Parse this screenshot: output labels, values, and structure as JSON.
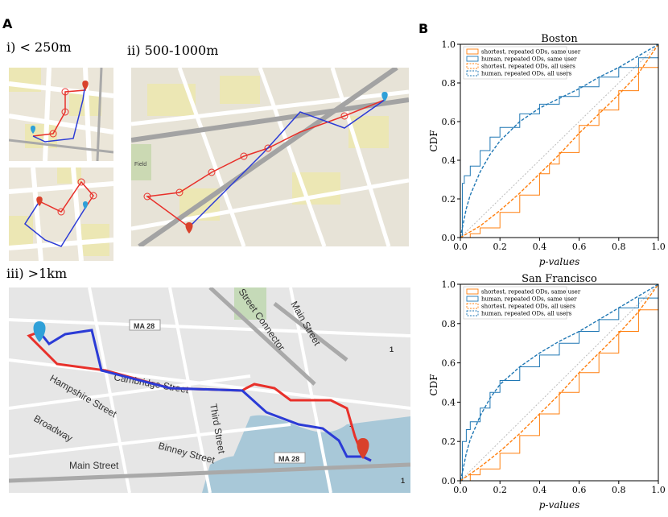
{
  "panel_a_label": "A",
  "panel_b_label": "B",
  "map_labels": {
    "i": "i) < 250m",
    "ii": "ii) 500-1000m",
    "iii": "iii) >1km"
  },
  "map_iii_text": {
    "street_cambridge": "Cambridge Street",
    "street_hampshire": "Hampshire Street",
    "street_broadway": "Broadway",
    "street_binney": "Binney Street",
    "street_main_lower": "Main Street",
    "street_main_upper": "Main Street",
    "street_third": "Third Street",
    "street_connector": "Street Connector",
    "route_ma28_top": "MA 28",
    "route_ma28_bottom": "MA 28",
    "route_1a": "1",
    "route_1b": "1",
    "route_1c": "1"
  },
  "map_ii_text": {
    "field": "Field"
  },
  "colors": {
    "shortest": "#ff7f0e",
    "human": "#1f77b4",
    "route_red": "#e8302a",
    "route_blue": "#2b3bd6",
    "pin_red": "#d9412b",
    "pin_blue": "#2fa0d8"
  },
  "chart_data": [
    {
      "type": "line",
      "title": "Boston",
      "xlabel": "p-values",
      "ylabel": "CDF",
      "xlim": [
        0,
        1
      ],
      "ylim": [
        0,
        1
      ],
      "xticks": [
        "0.0",
        "0.2",
        "0.4",
        "0.6",
        "0.8",
        "1.0"
      ],
      "yticks": [
        "0.0",
        "0.2",
        "0.4",
        "0.6",
        "0.8",
        "1.0"
      ],
      "legend_position": "top-left",
      "series": [
        {
          "name": "shortest, repeated ODs, same user",
          "style": "step",
          "x": [
            0,
            0.05,
            0.1,
            0.2,
            0.3,
            0.4,
            0.45,
            0.5,
            0.6,
            0.7,
            0.8,
            0.9,
            1.0
          ],
          "y": [
            0,
            0.02,
            0.05,
            0.13,
            0.22,
            0.33,
            0.38,
            0.44,
            0.58,
            0.66,
            0.76,
            0.88,
            1.0
          ]
        },
        {
          "name": "human, repeated ODs, same user",
          "style": "step",
          "x": [
            0,
            0.01,
            0.02,
            0.05,
            0.1,
            0.15,
            0.2,
            0.3,
            0.4,
            0.5,
            0.6,
            0.7,
            0.8,
            0.9,
            1.0
          ],
          "y": [
            0,
            0.28,
            0.32,
            0.37,
            0.45,
            0.52,
            0.57,
            0.64,
            0.69,
            0.73,
            0.78,
            0.83,
            0.88,
            0.93,
            1.0
          ]
        },
        {
          "name": "shortest, repeated ODs, all users",
          "style": "dashed",
          "x": [
            0,
            0.1,
            0.2,
            0.3,
            0.4,
            0.5,
            0.6,
            0.7,
            0.8,
            0.9,
            1.0
          ],
          "y": [
            0,
            0.06,
            0.14,
            0.23,
            0.33,
            0.43,
            0.54,
            0.64,
            0.74,
            0.85,
            1.0
          ]
        },
        {
          "name": "human, repeated ODs, all users",
          "style": "dashed",
          "x": [
            0,
            0.01,
            0.03,
            0.05,
            0.1,
            0.15,
            0.2,
            0.3,
            0.4,
            0.5,
            0.6,
            0.7,
            0.8,
            0.9,
            1.0
          ],
          "y": [
            0,
            0.05,
            0.15,
            0.22,
            0.34,
            0.43,
            0.5,
            0.6,
            0.67,
            0.72,
            0.77,
            0.83,
            0.88,
            0.94,
            1.0
          ]
        }
      ]
    },
    {
      "type": "line",
      "title": "San Francisco",
      "xlabel": "p-values",
      "ylabel": "CDF",
      "xlim": [
        0,
        1
      ],
      "ylim": [
        0,
        1
      ],
      "xticks": [
        "0.0",
        "0.2",
        "0.4",
        "0.6",
        "0.8",
        "1.0"
      ],
      "yticks": [
        "0.0",
        "0.2",
        "0.4",
        "0.6",
        "0.8",
        "1.0"
      ],
      "legend_position": "top-left",
      "series": [
        {
          "name": "shortest, repeated ODs, same user",
          "style": "step",
          "x": [
            0,
            0.05,
            0.1,
            0.2,
            0.3,
            0.4,
            0.5,
            0.6,
            0.7,
            0.8,
            0.9,
            1.0
          ],
          "y": [
            0,
            0.03,
            0.06,
            0.14,
            0.23,
            0.34,
            0.45,
            0.55,
            0.65,
            0.76,
            0.87,
            1.0
          ]
        },
        {
          "name": "human, repeated ODs, same user",
          "style": "step",
          "x": [
            0,
            0.01,
            0.03,
            0.05,
            0.1,
            0.15,
            0.2,
            0.3,
            0.4,
            0.5,
            0.6,
            0.7,
            0.8,
            0.9,
            1.0
          ],
          "y": [
            0,
            0.2,
            0.26,
            0.3,
            0.37,
            0.45,
            0.51,
            0.58,
            0.64,
            0.7,
            0.76,
            0.82,
            0.88,
            0.93,
            1.0
          ]
        },
        {
          "name": "shortest, repeated ODs, all users",
          "style": "dashed",
          "x": [
            0,
            0.1,
            0.2,
            0.3,
            0.4,
            0.5,
            0.6,
            0.7,
            0.8,
            0.9,
            1.0
          ],
          "y": [
            0,
            0.07,
            0.15,
            0.24,
            0.34,
            0.44,
            0.55,
            0.65,
            0.75,
            0.86,
            1.0
          ]
        },
        {
          "name": "human, repeated ODs, all users",
          "style": "dashed",
          "x": [
            0,
            0.01,
            0.03,
            0.05,
            0.1,
            0.15,
            0.2,
            0.3,
            0.4,
            0.5,
            0.6,
            0.7,
            0.8,
            0.9,
            1.0
          ],
          "y": [
            0,
            0.04,
            0.14,
            0.21,
            0.33,
            0.42,
            0.49,
            0.58,
            0.65,
            0.71,
            0.76,
            0.82,
            0.88,
            0.94,
            1.0
          ]
        }
      ]
    }
  ]
}
